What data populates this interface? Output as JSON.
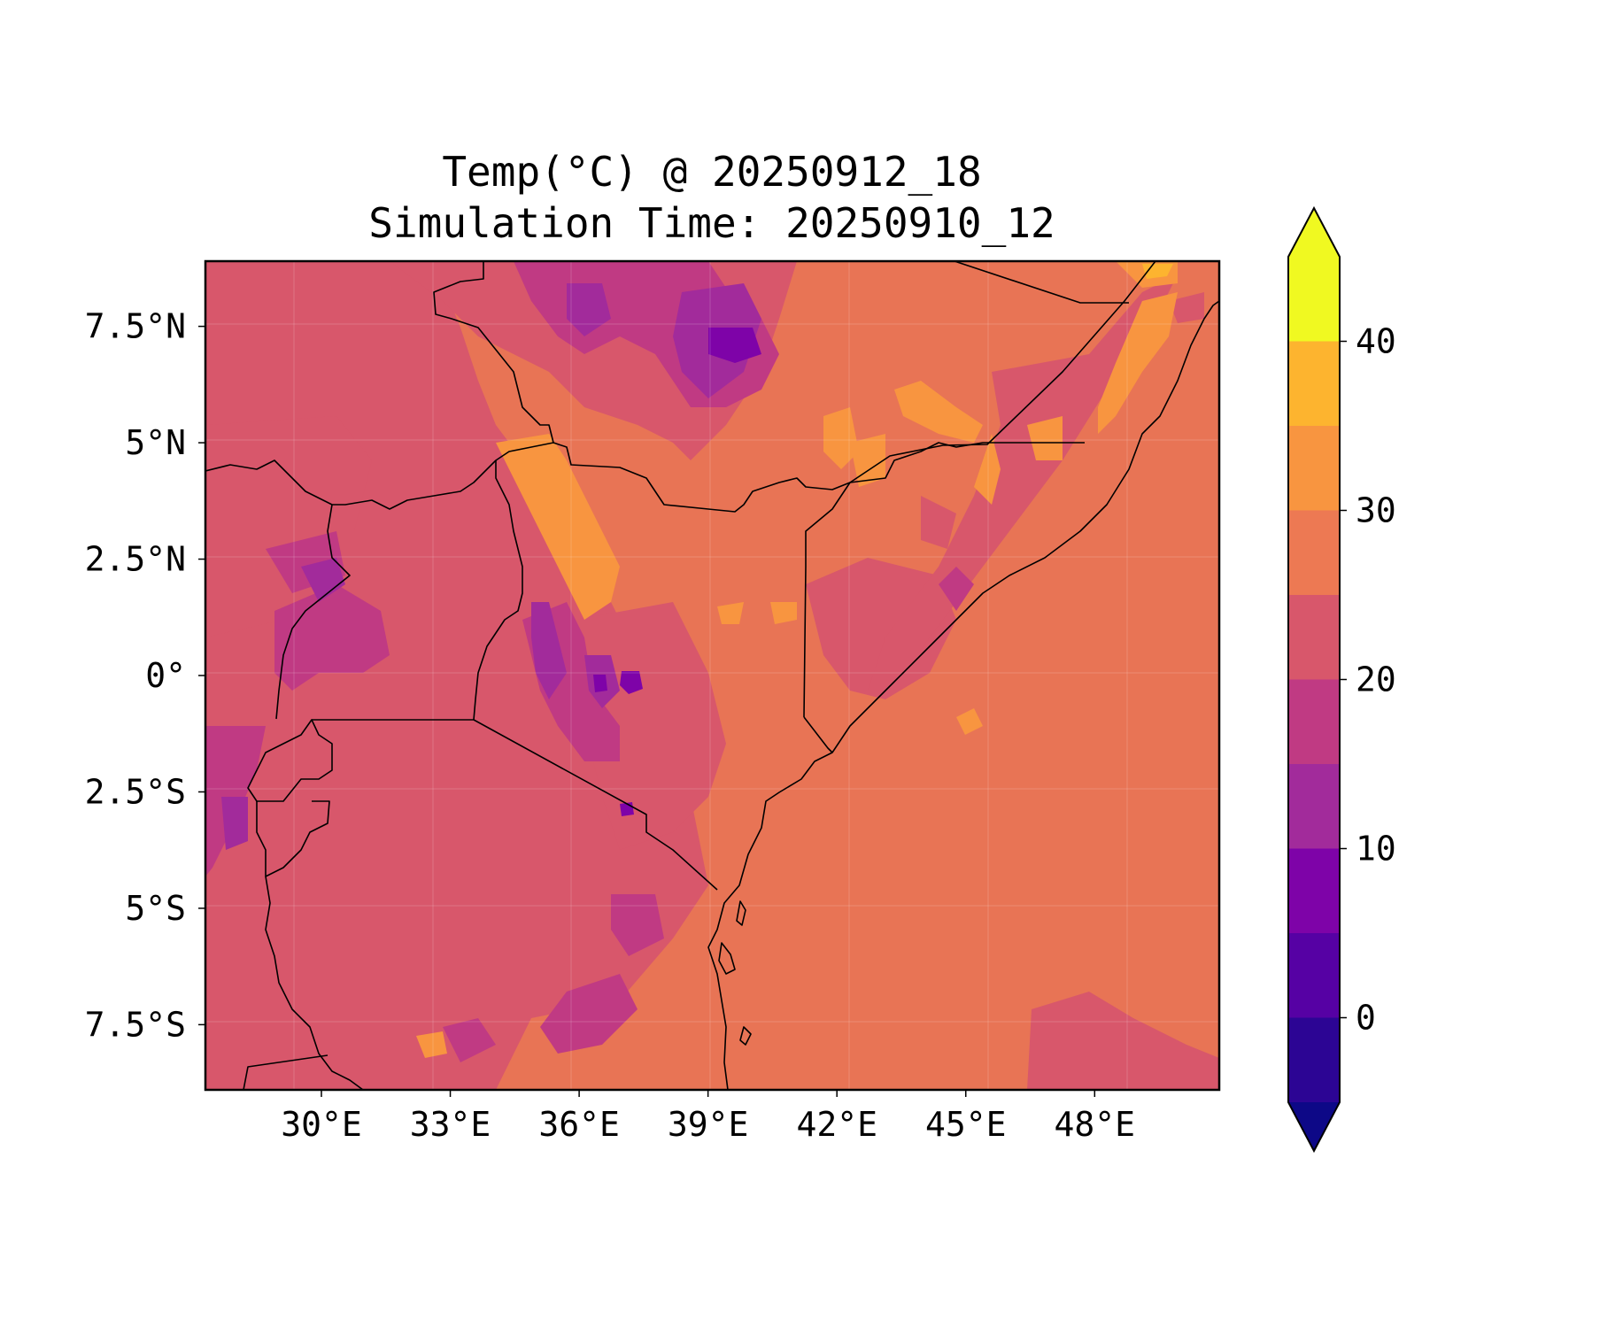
{
  "title": {
    "line1": "Temp(°C) @ 20250912_18",
    "line2": "Simulation Time: 20250910_12"
  },
  "map": {
    "lon_range": [
      27.3,
      50.9
    ],
    "lat_range": [
      -8.9,
      8.9
    ],
    "gridlines": true,
    "lon_ticks": [
      "30°E",
      "33°E",
      "36°E",
      "39°E",
      "42°E",
      "45°E",
      "48°E"
    ],
    "lat_ticks": [
      "7.5°N",
      "5°N",
      "2.5°N",
      "0°",
      "2.5°S",
      "5°S",
      "7.5°S"
    ],
    "background_level_color": "#e87455"
  },
  "colorbar": {
    "tick_labels": [
      "40",
      "30",
      "20",
      "10",
      "0"
    ],
    "levels": [
      -5,
      0,
      5,
      10,
      15,
      20,
      25,
      30,
      35,
      40,
      45
    ],
    "extend": "both",
    "colors": [
      "#0d0887",
      "#2c0594",
      "#5601a4",
      "#7e03a8",
      "#a22b9b",
      "#c03a83",
      "#d8576b",
      "#ed7953",
      "#f89540",
      "#fdb42f",
      "#f0f921",
      "#fbd524"
    ]
  }
}
